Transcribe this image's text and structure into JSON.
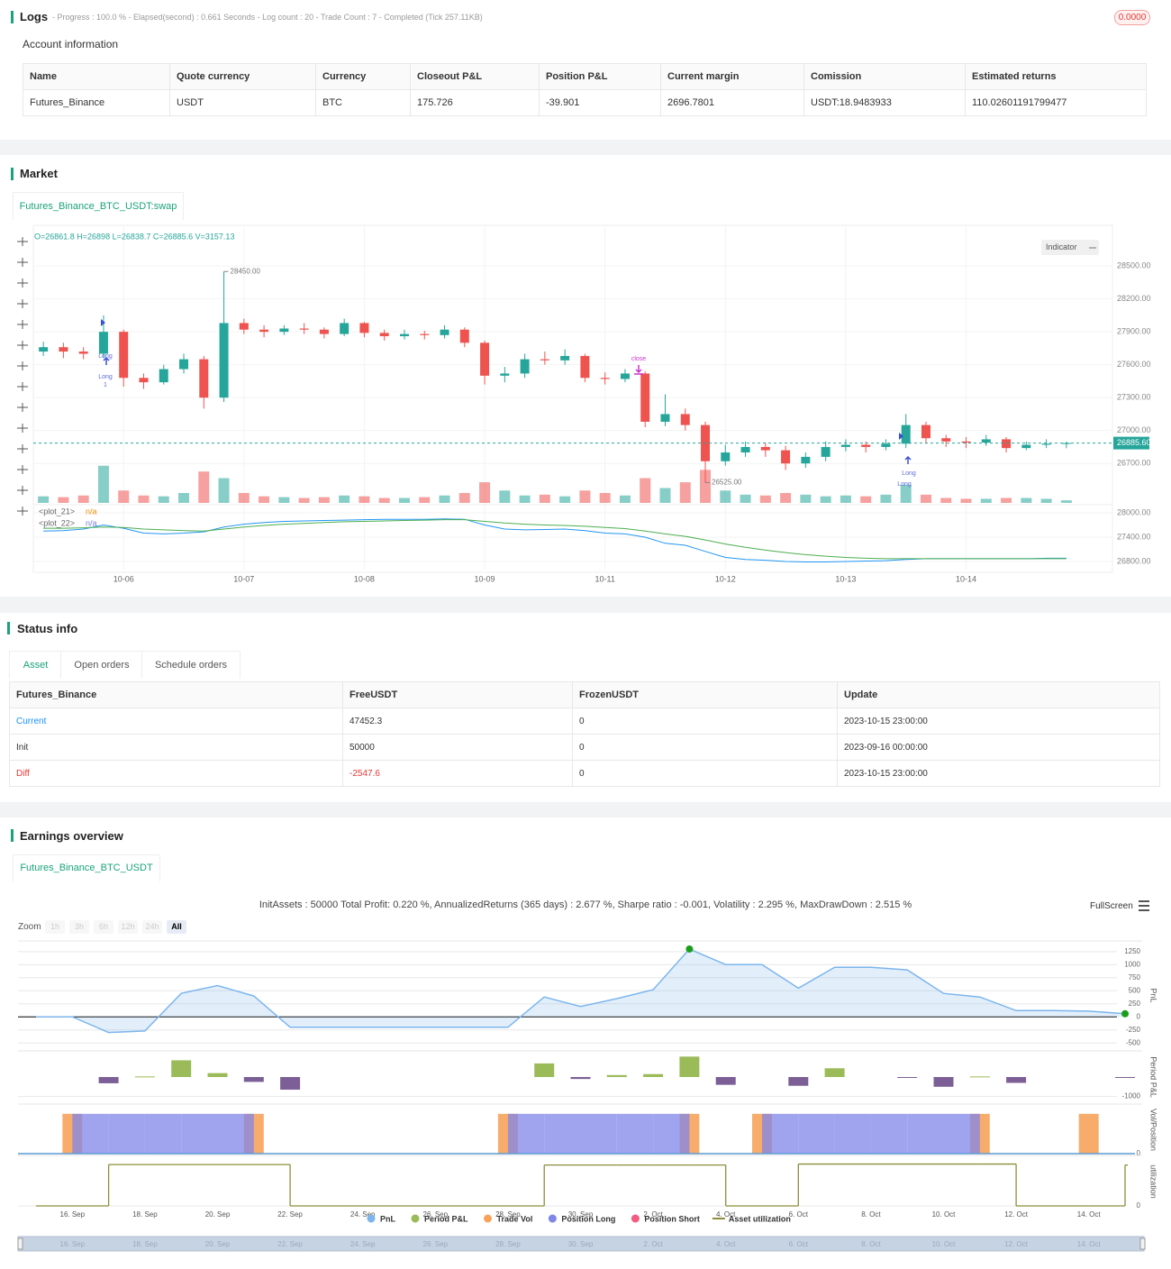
{
  "logs": {
    "title": "Logs",
    "summary": "- Progress : 100.0 % - Elapsed(second) : 0.661 Seconds - Log count : 20 - Trade Count : 7 - Completed (Tick 257.11KB)",
    "badge": "0.0000"
  },
  "account": {
    "title": "Account information",
    "headers": [
      "Name",
      "Quote currency",
      "Currency",
      "Closeout P&L",
      "Position P&L",
      "Current margin",
      "Comission",
      "Estimated returns"
    ],
    "rows": [
      [
        "Futures_Binance",
        "USDT",
        "BTC",
        "175.726",
        "-39.901",
        "2696.7801",
        "USDT:18.9483933",
        "110.02601191799477"
      ]
    ]
  },
  "market": {
    "title": "Market",
    "tab": "Futures_Binance_BTC_USDT:swap",
    "indicator_button": "Indicator"
  },
  "status": {
    "title": "Status info",
    "tabs": [
      "Asset",
      "Open orders",
      "Schedule orders"
    ],
    "headers": [
      "Futures_Binance",
      "FreeUSDT",
      "FrozenUSDT",
      "Update"
    ],
    "rows": [
      [
        "Current",
        "47452.3",
        "0",
        "2023-10-15 23:00:00"
      ],
      [
        "Init",
        "50000",
        "0",
        "2023-09-16 00:00:00"
      ],
      [
        "Diff",
        "-2547.6",
        "0",
        "2023-10-15 23:00:00"
      ]
    ]
  },
  "earnings": {
    "title": "Earnings overview",
    "tab": "Futures_Binance_BTC_USDT",
    "zoom_label": "Zoom",
    "zoom_buttons": [
      "1h",
      "3h",
      "6h",
      "12h",
      "24h",
      "All"
    ],
    "fullscreen": "FullScreen"
  },
  "chart_data": [
    {
      "type": "candlestick",
      "info": "O=26861.8 H=26898 L=26838.7 C=26885.6 V=3157.13",
      "categories": [
        null,
        null,
        null,
        null,
        "10-06",
        null,
        null,
        null,
        null,
        null,
        "10-07",
        null,
        null,
        null,
        null,
        null,
        "10-08",
        null,
        null,
        null,
        null,
        null,
        "10-09",
        null,
        null,
        null,
        null,
        null,
        "10-11",
        null,
        null,
        null,
        null,
        null,
        "10-12",
        null,
        null,
        null,
        null,
        null,
        "10-13",
        null,
        null,
        null,
        null,
        null,
        "10-14",
        null,
        null,
        null,
        null,
        null
      ],
      "open": [
        27720,
        27760,
        27720,
        27700,
        27900,
        27480,
        27440,
        27560,
        27650,
        27300,
        27980,
        27920,
        27900,
        27930,
        27920,
        27880,
        27980,
        27890,
        27860,
        27880,
        27870,
        27920,
        27800,
        27500,
        27520,
        27650,
        27640,
        27680,
        27480,
        27470,
        27520,
        27080,
        27150,
        27050,
        26720,
        26800,
        26850,
        26820,
        26700,
        26760,
        26850,
        26870,
        26850,
        26880,
        27050,
        26930,
        26900,
        26890,
        26920,
        26840,
        26870,
        26880
      ],
      "high": [
        27810,
        27800,
        27760,
        28050,
        27920,
        27520,
        27600,
        27700,
        27680,
        28450,
        28020,
        27960,
        27960,
        27980,
        27940,
        28020,
        27990,
        27920,
        27920,
        27910,
        27960,
        27940,
        27820,
        27580,
        27700,
        27720,
        27740,
        27700,
        27530,
        27560,
        27540,
        27330,
        27200,
        27080,
        26870,
        26900,
        26890,
        26860,
        26800,
        26900,
        26920,
        26900,
        26920,
        27150,
        27080,
        26960,
        26940,
        26960,
        26940,
        26900,
        26920,
        26898
      ],
      "low": [
        27680,
        27660,
        27650,
        27660,
        27400,
        27380,
        27420,
        27520,
        27200,
        27260,
        27880,
        27850,
        27870,
        27880,
        27840,
        27860,
        27850,
        27820,
        27830,
        27830,
        27840,
        27760,
        27420,
        27440,
        27480,
        27600,
        27600,
        27440,
        27420,
        27440,
        27030,
        27040,
        27000,
        26525,
        26680,
        26760,
        26760,
        26640,
        26660,
        26720,
        26810,
        26800,
        26820,
        26840,
        26880,
        26850,
        26840,
        26860,
        26800,
        26820,
        26840,
        26838.7
      ],
      "close": [
        27760,
        27720,
        27700,
        27900,
        27480,
        27440,
        27560,
        27650,
        27300,
        27980,
        27920,
        27900,
        27930,
        27920,
        27880,
        27980,
        27890,
        27860,
        27880,
        27870,
        27920,
        27800,
        27500,
        27520,
        27650,
        27640,
        27680,
        27480,
        27470,
        27520,
        27080,
        27150,
        27050,
        26720,
        26800,
        26850,
        26820,
        26700,
        26760,
        26850,
        26870,
        26850,
        26880,
        27050,
        26930,
        26900,
        26890,
        26920,
        26840,
        26870,
        26880,
        26885.6
      ],
      "volume": [
        8000,
        7000,
        9000,
        45000,
        15000,
        9000,
        8000,
        12000,
        38000,
        30000,
        12000,
        8000,
        7000,
        6000,
        7000,
        9000,
        8000,
        6000,
        6000,
        7000,
        9000,
        12000,
        25000,
        15000,
        9000,
        10000,
        8000,
        15000,
        12000,
        9000,
        30000,
        18000,
        25000,
        40000,
        15000,
        10000,
        9000,
        12000,
        10000,
        8000,
        9000,
        8000,
        10000,
        22000,
        10000,
        6000,
        5000,
        5000,
        6000,
        6000,
        5000,
        3157.13
      ],
      "volume_lim": [
        0,
        60000
      ],
      "up_color": "#26a69a",
      "down_color": "#ef5350",
      "ylim": [
        26340,
        28830
      ],
      "yticks": [
        {
          "value": 26700,
          "label": "26700.00"
        },
        {
          "value": 27000,
          "label": "27000.00"
        },
        {
          "value": 27300,
          "label": "27300.00"
        },
        {
          "value": 27600,
          "label": "27600.00"
        },
        {
          "value": 27900,
          "label": "27900.00"
        },
        {
          "value": 28200,
          "label": "28200.00"
        },
        {
          "value": 28500,
          "label": "28500.00"
        }
      ],
      "last_price": {
        "value": 26885.6,
        "label": "26885.60"
      },
      "max_label": {
        "value": 28450,
        "label": "28450.00"
      },
      "min_label": {
        "value": 26525,
        "label": "26525.00"
      },
      "annotations": [
        "Long",
        "Long",
        "1",
        "close",
        "Long",
        "Long"
      ],
      "indicators": {
        "ylim": [
          26600,
          28200
        ],
        "yticks": [
          {
            "value": 26800,
            "label": "26800.00"
          },
          {
            "value": 27400,
            "label": "27400.00"
          },
          {
            "value": 28000,
            "label": "28000.00"
          }
        ],
        "series": [
          {
            "name": "<plot_21>",
            "color": "#2196f3",
            "last_value": "n/a",
            "values": [
              27550,
              27560,
              27600,
              27700,
              27620,
              27500,
              27480,
              27500,
              27530,
              27650,
              27720,
              27760,
              27790,
              27800,
              27810,
              27820,
              27830,
              27840,
              27840,
              27840,
              27850,
              27840,
              27700,
              27600,
              27580,
              27590,
              27600,
              27560,
              27500,
              27480,
              27400,
              27250,
              27200,
              27050,
              26900,
              26850,
              26830,
              26800,
              26790,
              26790,
              26800,
              26810,
              26820,
              26850,
              26870,
              26870,
              26870,
              26870,
              26870,
              26870,
              26880,
              26880
            ]
          },
          {
            "name": "<plot_22>",
            "color": "#4caf50",
            "last_value": "n/a",
            "values": [
              27620,
              27620,
              27630,
              27650,
              27640,
              27600,
              27580,
              27560,
              27550,
              27600,
              27650,
              27690,
              27720,
              27740,
              27760,
              27780,
              27790,
              27800,
              27810,
              27820,
              27830,
              27830,
              27790,
              27750,
              27720,
              27700,
              27690,
              27670,
              27640,
              27610,
              27550,
              27480,
              27420,
              27330,
              27230,
              27150,
              27080,
              27020,
              26970,
              26930,
              26900,
              26880,
              26870,
              26870,
              26870,
              26870,
              26870,
              26870,
              26870,
              26870,
              26870,
              26870
            ]
          }
        ]
      }
    },
    {
      "type": "multi_pane",
      "title": "InitAssets : 50000 Total Profit: 0.220 %, AnnualizedReturns (365 days) : 2.677 %, Sharpe ratio : -0.001, Volatility : 2.295 %, MaxDrawDown : 2.515 %",
      "categories": [
        null,
        "16. Sep",
        null,
        "18. Sep",
        null,
        "20. Sep",
        null,
        "22. Sep",
        null,
        "24. Sep",
        null,
        "26. Sep",
        null,
        "28. Sep",
        null,
        "30. Sep",
        null,
        "2. Oct",
        null,
        "4. Oct",
        null,
        "6. Oct",
        null,
        "8. Oct",
        null,
        "10. Oct",
        null,
        "12. Oct",
        null,
        "14. Oct",
        null
      ],
      "panes": [
        {
          "title": "PnL",
          "ylim": [
            -600,
            1420
          ],
          "yticks": [
            -500,
            -250,
            0,
            250,
            500,
            750,
            1000,
            1250
          ]
        },
        {
          "title": "Period P&L",
          "ylim": [
            -1250,
            1250
          ],
          "yticks": [
            -1000
          ]
        },
        {
          "title": "Vol/Position",
          "ylim": [
            0,
            1.2
          ],
          "yticks": [
            0
          ]
        },
        {
          "title": "utilization",
          "ylim": [
            0,
            1
          ],
          "yticks": [
            0
          ]
        }
      ],
      "series": [
        {
          "name": "PnL",
          "pane": 0,
          "type": "area",
          "color": "#7cb5ec",
          "values": [
            0,
            0,
            -300,
            -270,
            450,
            600,
            400,
            -200,
            -200,
            -200,
            -200,
            -200,
            -200,
            -200,
            380,
            200,
            350,
            520,
            1300,
            1000,
            1000,
            550,
            950,
            950,
            900,
            450,
            380,
            120,
            120,
            110,
            60
          ]
        },
        {
          "name": "Period P&L",
          "pane": 1,
          "type": "bar",
          "color": "#9bbb59",
          "negative_color": "#7b5f96",
          "values": [
            null,
            null,
            -320,
            30,
            860,
            200,
            -250,
            -650,
            null,
            null,
            null,
            null,
            null,
            null,
            700,
            -100,
            100,
            150,
            1050,
            -400,
            null,
            -450,
            450,
            null,
            -30,
            -500,
            30,
            -300,
            null,
            null,
            -30
          ]
        },
        {
          "name": "Trade Vol",
          "pane": 2,
          "type": "bar",
          "color": "#f7a35c",
          "values": [
            null,
            1,
            null,
            null,
            null,
            null,
            1,
            null,
            null,
            null,
            null,
            null,
            null,
            1,
            null,
            null,
            null,
            null,
            1,
            null,
            1,
            null,
            null,
            null,
            null,
            null,
            1,
            null,
            null,
            1,
            null
          ]
        },
        {
          "name": "Position Long",
          "pane": 2,
          "type": "step_area",
          "color": "#8085e9",
          "values": [
            0,
            1,
            1,
            1,
            1,
            1,
            0,
            0,
            0,
            0,
            0,
            0,
            0,
            1,
            1,
            1,
            1,
            1,
            0,
            0,
            1,
            1,
            1,
            1,
            1,
            1,
            0,
            0,
            0,
            0,
            0
          ]
        },
        {
          "name": "Position Short",
          "pane": 2,
          "type": "step_area",
          "color": "#f15c80",
          "values": [
            0,
            0,
            0,
            0,
            0,
            0,
            0,
            0,
            0,
            0,
            0,
            0,
            0,
            0,
            0,
            0,
            0,
            0,
            0,
            0,
            0,
            0,
            0,
            0,
            0,
            0,
            0,
            0,
            0,
            0,
            0
          ]
        },
        {
          "name": "Asset utilization",
          "pane": 3,
          "type": "step",
          "color": "#8d8d3c",
          "values": [
            0,
            0,
            0.85,
            0.85,
            0.85,
            0.85,
            0.85,
            0,
            0,
            0,
            0,
            0,
            0,
            0,
            0.84,
            0.84,
            0.84,
            0.84,
            0.84,
            0,
            0,
            0.86,
            0.86,
            0.86,
            0.86,
            0.86,
            0.86,
            0,
            0,
            0,
            0.84
          ]
        }
      ]
    }
  ]
}
